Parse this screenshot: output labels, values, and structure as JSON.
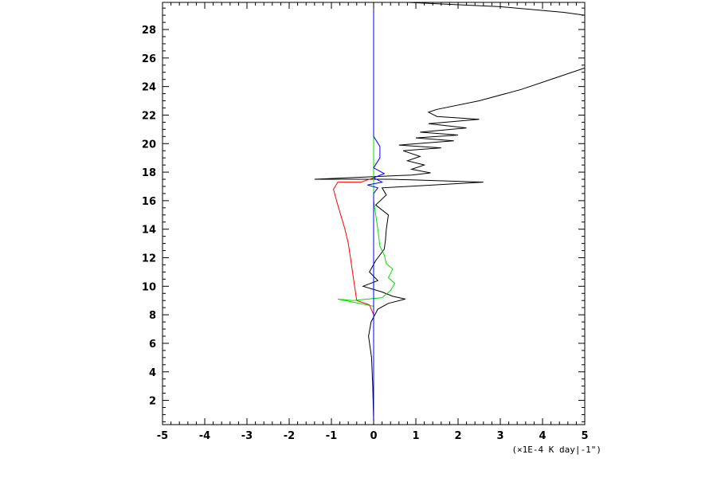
{
  "chart_data": {
    "type": "line",
    "xlabel": "(×1E-4 K day|-1\")",
    "ylabel": "",
    "xlim": [
      -5,
      5
    ],
    "ylim": [
      0.3,
      29.9
    ],
    "x_ticks": [
      -5,
      -4,
      -3,
      -2,
      -1,
      0,
      1,
      2,
      3,
      4,
      5
    ],
    "y_ticks": [
      2,
      4,
      6,
      8,
      10,
      12,
      14,
      16,
      18,
      20,
      22,
      24,
      26,
      28
    ],
    "x_minor_step": 0.2,
    "y_minor_step": 0.5,
    "grid": false,
    "legend": "none",
    "series": [
      {
        "color": "#000000",
        "points": [
          [
            0.0,
            0.5
          ],
          [
            -0.02,
            3.0
          ],
          [
            -0.05,
            5.0
          ],
          [
            -0.12,
            6.5
          ],
          [
            -0.06,
            7.5
          ],
          [
            0.1,
            8.4
          ],
          [
            0.35,
            8.8
          ],
          [
            0.75,
            9.1
          ],
          [
            0.45,
            9.3
          ],
          [
            0.2,
            9.6
          ],
          [
            -0.25,
            10.0
          ],
          [
            0.1,
            10.4
          ],
          [
            -0.1,
            11.0
          ],
          [
            0.05,
            11.8
          ],
          [
            0.25,
            12.6
          ],
          [
            0.28,
            13.2
          ],
          [
            0.3,
            14.0
          ],
          [
            0.35,
            15.0
          ],
          [
            0.05,
            15.7
          ],
          [
            0.3,
            16.4
          ],
          [
            0.2,
            16.9
          ],
          [
            2.6,
            17.3
          ],
          [
            0.4,
            17.5
          ],
          [
            -1.4,
            17.5
          ],
          [
            0.9,
            17.8
          ],
          [
            1.35,
            17.95
          ],
          [
            0.9,
            18.2
          ],
          [
            1.2,
            18.5
          ],
          [
            0.8,
            18.8
          ],
          [
            1.1,
            19.1
          ],
          [
            0.7,
            19.5
          ],
          [
            1.6,
            19.7
          ],
          [
            0.6,
            19.9
          ],
          [
            1.9,
            20.2
          ],
          [
            1.0,
            20.4
          ],
          [
            2.0,
            20.6
          ],
          [
            1.1,
            20.8
          ],
          [
            2.2,
            21.1
          ],
          [
            1.3,
            21.4
          ],
          [
            2.5,
            21.7
          ],
          [
            1.5,
            21.9
          ],
          [
            1.3,
            22.2
          ],
          [
            1.5,
            22.4
          ],
          [
            2.5,
            23.0
          ],
          [
            3.5,
            23.8
          ],
          [
            4.3,
            24.6
          ],
          [
            5.0,
            25.3
          ]
        ]
      },
      {
        "color": "#000000",
        "points": [
          [
            0.8,
            29.9
          ],
          [
            3.0,
            29.6
          ],
          [
            4.5,
            29.2
          ],
          [
            5.0,
            29.0
          ]
        ]
      },
      {
        "color": "#ff0000",
        "points": [
          [
            0.0,
            0.5
          ],
          [
            0.0,
            8.0
          ],
          [
            -0.1,
            8.7
          ],
          [
            -0.4,
            9.0
          ],
          [
            -0.45,
            10.0
          ],
          [
            -0.5,
            11.0
          ],
          [
            -0.55,
            12.0
          ],
          [
            -0.6,
            13.0
          ],
          [
            -0.68,
            14.0
          ],
          [
            -0.78,
            15.0
          ],
          [
            -0.88,
            16.0
          ],
          [
            -0.95,
            16.8
          ],
          [
            -0.85,
            17.3
          ],
          [
            -0.3,
            17.3
          ],
          [
            0.0,
            17.6
          ],
          [
            0.0,
            29.9
          ]
        ]
      },
      {
        "color": "#00dd00",
        "points": [
          [
            0.0,
            0.5
          ],
          [
            0.0,
            8.6
          ],
          [
            -0.85,
            9.1
          ],
          [
            -0.5,
            9.0
          ],
          [
            0.2,
            9.2
          ],
          [
            0.4,
            9.7
          ],
          [
            0.5,
            10.2
          ],
          [
            0.35,
            10.6
          ],
          [
            0.45,
            11.2
          ],
          [
            0.3,
            11.6
          ],
          [
            0.25,
            12.2
          ],
          [
            0.15,
            12.8
          ],
          [
            0.1,
            14.0
          ],
          [
            0.0,
            16.0
          ],
          [
            0.0,
            29.9
          ]
        ]
      },
      {
        "color": "#0000ff",
        "points": [
          [
            0.0,
            0.5
          ],
          [
            0.0,
            16.5
          ],
          [
            0.1,
            16.9
          ],
          [
            -0.15,
            17.1
          ],
          [
            0.2,
            17.3
          ],
          [
            0.0,
            17.6
          ],
          [
            0.25,
            17.9
          ],
          [
            0.0,
            18.3
          ],
          [
            0.15,
            19.0
          ],
          [
            0.15,
            19.8
          ],
          [
            0.0,
            20.5
          ],
          [
            0.0,
            29.9
          ]
        ]
      }
    ]
  }
}
